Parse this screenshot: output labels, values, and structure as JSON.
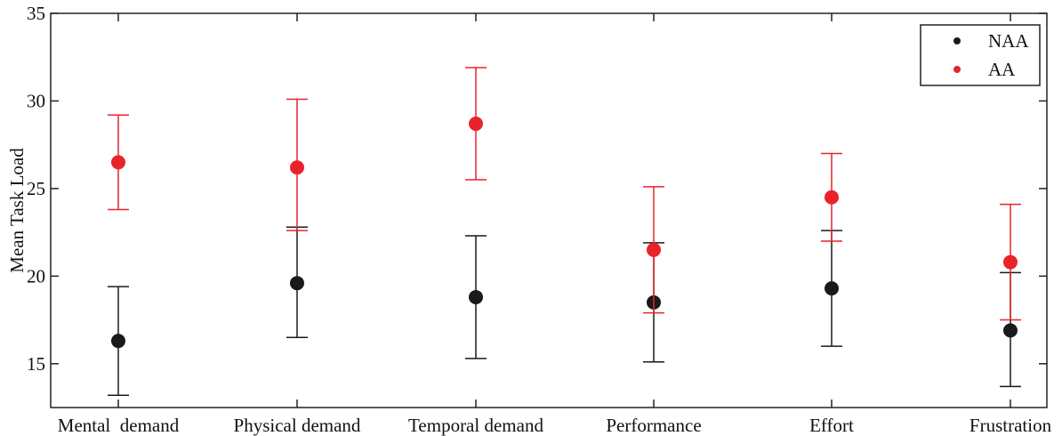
{
  "chart_data": {
    "type": "scatter",
    "categories": [
      "Mental  demand",
      "Physical demand",
      "Temporal demand",
      "Performance",
      "Effort",
      "Frustration"
    ],
    "series": [
      {
        "name": "NAA",
        "color": "#1a1a1a",
        "values": [
          16.3,
          19.6,
          18.8,
          18.5,
          19.3,
          16.9
        ],
        "err_low": [
          13.2,
          16.5,
          15.3,
          15.1,
          16.0,
          13.7
        ],
        "err_high": [
          19.4,
          22.8,
          22.3,
          21.9,
          22.6,
          20.2
        ]
      },
      {
        "name": "AA",
        "color": "#e8242a",
        "values": [
          26.5,
          26.2,
          28.7,
          21.5,
          24.5,
          20.8
        ],
        "err_low": [
          23.8,
          22.6,
          25.5,
          17.9,
          22.0,
          17.5
        ],
        "err_high": [
          29.2,
          30.1,
          31.9,
          25.1,
          27.0,
          24.1
        ]
      }
    ],
    "ylabel": "Mean Task Load",
    "xlabel": "",
    "ylim": [
      12.5,
      35
    ],
    "yticks": [
      15,
      20,
      25,
      30,
      35
    ],
    "legend_position": "top-right",
    "grid": false
  }
}
